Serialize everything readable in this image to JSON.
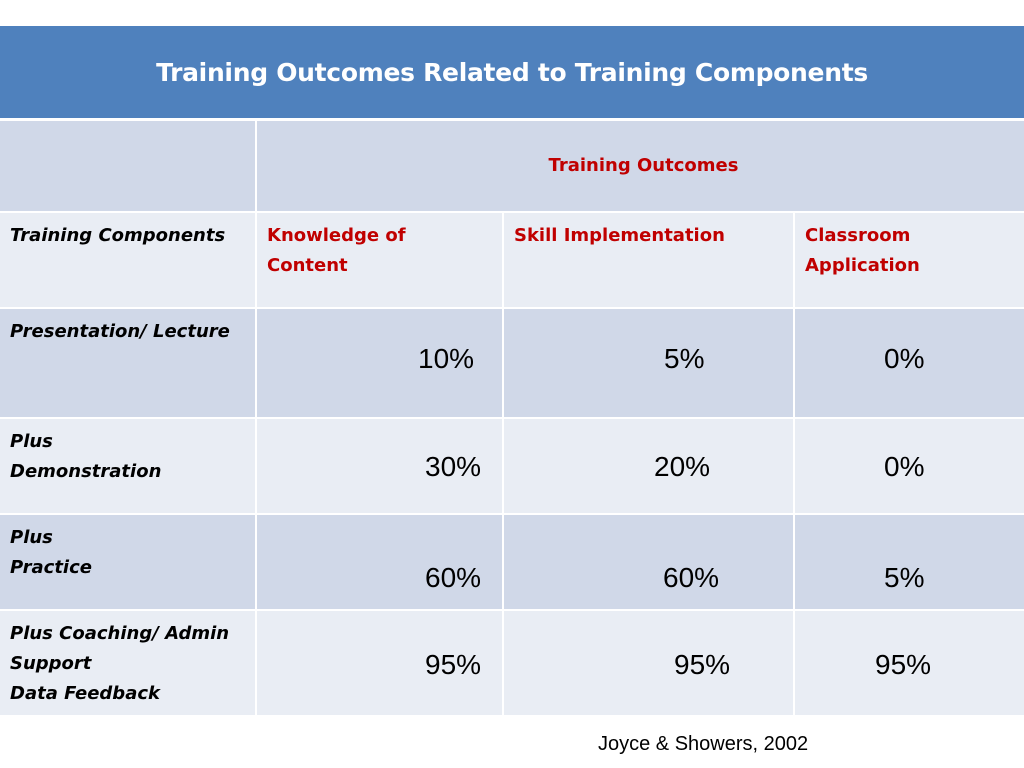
{
  "slide": {
    "title": "Training Outcomes Related to Training Components",
    "citation": "Joyce & Showers, 2002"
  },
  "table": {
    "outcomes_header": "Training Outcomes",
    "components_header": "Training Components",
    "columns": [
      [
        "Knowledge of",
        "Content"
      ],
      [
        "Skill Implementation"
      ],
      [
        "Classroom",
        "Application"
      ]
    ],
    "rows": [
      {
        "label": [
          "Presentation/ Lecture"
        ],
        "values": [
          "10%",
          "5%",
          "0%"
        ]
      },
      {
        "label": [
          "Plus",
          "Demonstration"
        ],
        "values": [
          "30%",
          "20%",
          "0%"
        ]
      },
      {
        "label": [
          "Plus",
          "Practice"
        ],
        "values": [
          "60%",
          "60%",
          "5%"
        ]
      },
      {
        "label": [
          "Plus Coaching/ Admin",
          "Support",
          "Data Feedback"
        ],
        "values": [
          "95%",
          "95%",
          "95%"
        ]
      }
    ]
  },
  "colors": {
    "title_bar": "#4f81bd",
    "dark_row": "#d0d8e8",
    "light_row": "#e9edf4",
    "accent_red": "#c00000"
  }
}
